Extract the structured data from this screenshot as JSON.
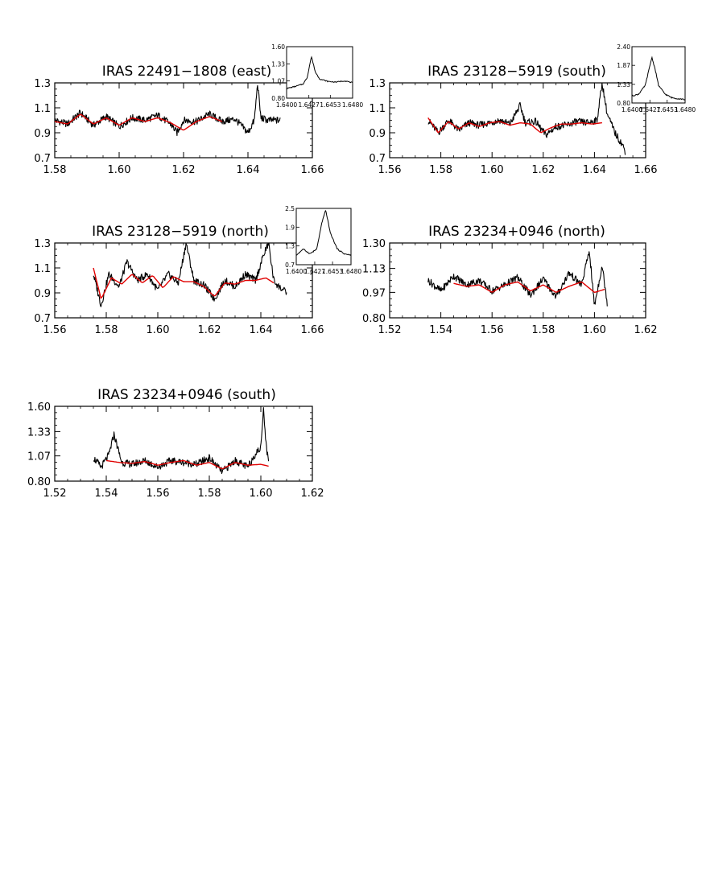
{
  "chart_data": [
    {
      "type": "line",
      "title": "IRAS 22491−1808 (east)",
      "xlim": [
        1.58,
        1.66
      ],
      "ylim": [
        0.7,
        1.3
      ],
      "xticks": [
        "1.58",
        "1.60",
        "1.62",
        "1.64",
        "1.66"
      ],
      "yticks": [
        "0.7",
        "0.9",
        "1.1",
        "1.3"
      ],
      "yticks_values": [
        0.7,
        0.9,
        1.1,
        1.3
      ],
      "data_x_range": [
        1.58,
        1.65
      ],
      "series": [
        {
          "color": "#000000",
          "x": [
            1.58,
            1.584,
            1.588,
            1.592,
            1.596,
            1.6,
            1.604,
            1.608,
            1.612,
            1.616,
            1.618,
            1.62,
            1.624,
            1.628,
            1.632,
            1.636,
            1.64,
            1.642,
            1.643,
            1.644,
            1.646,
            1.65
          ],
          "y": [
            1.0,
            0.97,
            1.06,
            0.96,
            1.03,
            0.95,
            1.02,
            1.0,
            1.04,
            0.97,
            0.9,
            1.0,
            0.99,
            1.05,
            0.99,
            1.01,
            0.9,
            1.0,
            1.3,
            1.02,
            1.0,
            1.0
          ]
        },
        {
          "color": "#e00000",
          "x": [
            1.58,
            1.584,
            1.588,
            1.592,
            1.596,
            1.6,
            1.604,
            1.608,
            1.612,
            1.616,
            1.62,
            1.624,
            1.628,
            1.632
          ],
          "y": [
            0.99,
            0.97,
            1.05,
            0.97,
            1.02,
            0.96,
            1.02,
            0.99,
            1.02,
            0.98,
            0.92,
            0.99,
            1.03,
            0.99
          ]
        }
      ],
      "inset": {
        "xlim": [
          1.64,
          1.648
        ],
        "ylim": [
          0.8,
          1.6
        ],
        "xticks": [
          "1.6400",
          "1.6427",
          "1.6453",
          "1.6480"
        ],
        "xticks_values": [
          1.64,
          1.6427,
          1.6453,
          1.648
        ],
        "yticks": [
          "0.80",
          "1.07",
          "1.33",
          "1.60"
        ],
        "yticks_values": [
          0.8,
          1.07,
          1.33,
          1.6
        ],
        "x": [
          1.64,
          1.641,
          1.642,
          1.6425,
          1.643,
          1.6435,
          1.644,
          1.645,
          1.646,
          1.647,
          1.648
        ],
        "y": [
          0.95,
          0.98,
          1.02,
          1.12,
          1.45,
          1.2,
          1.1,
          1.06,
          1.05,
          1.07,
          1.04
        ]
      }
    },
    {
      "type": "line",
      "title": "IRAS 23128−5919 (south)",
      "xlim": [
        1.56,
        1.66
      ],
      "ylim": [
        0.7,
        1.3
      ],
      "xticks": [
        "1.56",
        "1.58",
        "1.60",
        "1.62",
        "1.64",
        "1.66"
      ],
      "yticks": [
        "0.7",
        "0.9",
        "1.1",
        "1.3"
      ],
      "yticks_values": [
        0.7,
        0.9,
        1.1,
        1.3
      ],
      "data_x_range": [
        1.575,
        1.652
      ],
      "series": [
        {
          "color": "#000000",
          "x": [
            1.575,
            1.579,
            1.583,
            1.587,
            1.591,
            1.595,
            1.599,
            1.603,
            1.607,
            1.611,
            1.613,
            1.617,
            1.621,
            1.625,
            1.629,
            1.633,
            1.637,
            1.641,
            1.643,
            1.645,
            1.648,
            1.651,
            1.652
          ],
          "y": [
            1.0,
            0.9,
            1.0,
            0.92,
            0.98,
            0.96,
            0.98,
            1.0,
            0.97,
            1.12,
            0.98,
            0.99,
            0.88,
            0.95,
            0.96,
            0.99,
            0.98,
            1.0,
            1.3,
            1.05,
            0.9,
            0.8,
            0.75
          ]
        },
        {
          "color": "#e00000",
          "x": [
            1.575,
            1.579,
            1.583,
            1.587,
            1.591,
            1.595,
            1.599,
            1.603,
            1.607,
            1.611,
            1.615,
            1.619,
            1.623,
            1.627,
            1.631,
            1.635,
            1.639,
            1.643
          ],
          "y": [
            1.02,
            0.9,
            0.99,
            0.93,
            0.98,
            0.95,
            0.98,
            0.99,
            0.96,
            0.98,
            0.97,
            0.9,
            0.94,
            0.97,
            0.97,
            0.98,
            0.97,
            0.98
          ]
        }
      ],
      "inset": {
        "xlim": [
          1.64,
          1.648
        ],
        "ylim": [
          0.8,
          2.4
        ],
        "xticks": [
          "1.6400",
          "1.6427",
          "1.6453",
          "1.6480"
        ],
        "xticks_values": [
          1.64,
          1.6427,
          1.6453,
          1.648
        ],
        "yticks": [
          "0.80",
          "1.33",
          "1.87",
          "2.40"
        ],
        "yticks_values": [
          0.8,
          1.33,
          1.87,
          2.4
        ],
        "x": [
          1.64,
          1.641,
          1.642,
          1.6425,
          1.643,
          1.6435,
          1.644,
          1.645,
          1.646,
          1.647,
          1.648
        ],
        "y": [
          1.0,
          1.05,
          1.3,
          1.7,
          2.1,
          1.75,
          1.3,
          1.05,
          0.95,
          0.92,
          0.9
        ]
      }
    },
    {
      "type": "line",
      "title": "IRAS 23128−5919 (north)",
      "xlim": [
        1.56,
        1.66
      ],
      "ylim": [
        0.7,
        1.3
      ],
      "xticks": [
        "1.56",
        "1.58",
        "1.60",
        "1.62",
        "1.64",
        "1.66"
      ],
      "yticks": [
        "0.7",
        "0.9",
        "1.1",
        "1.3"
      ],
      "yticks_values": [
        0.7,
        0.9,
        1.1,
        1.3
      ],
      "data_x_range": [
        1.575,
        1.65
      ],
      "series": [
        {
          "color": "#000000",
          "x": [
            1.575,
            1.578,
            1.581,
            1.585,
            1.588,
            1.592,
            1.596,
            1.6,
            1.604,
            1.608,
            1.611,
            1.614,
            1.618,
            1.622,
            1.626,
            1.63,
            1.634,
            1.638,
            1.641,
            1.643,
            1.645,
            1.647,
            1.65
          ],
          "y": [
            1.05,
            0.8,
            1.05,
            0.95,
            1.15,
            1.0,
            1.05,
            0.92,
            1.05,
            0.98,
            1.3,
            1.0,
            0.96,
            0.85,
            1.0,
            0.95,
            1.05,
            1.0,
            1.2,
            1.3,
            1.0,
            0.95,
            0.9
          ]
        },
        {
          "color": "#e00000",
          "x": [
            1.575,
            1.578,
            1.582,
            1.586,
            1.59,
            1.594,
            1.598,
            1.602,
            1.606,
            1.61,
            1.614,
            1.618,
            1.622,
            1.626,
            1.63,
            1.634,
            1.638,
            1.642,
            1.645
          ],
          "y": [
            1.1,
            0.85,
            1.02,
            0.97,
            1.05,
            0.98,
            1.04,
            0.94,
            1.03,
            0.99,
            0.99,
            0.95,
            0.87,
            0.98,
            0.97,
            1.0,
            1.0,
            1.02,
            0.98
          ]
        }
      ],
      "inset": {
        "xlim": [
          1.64,
          1.648
        ],
        "ylim": [
          0.7,
          2.5
        ],
        "xticks": [
          "1.6400",
          "1.6427",
          "1.6453",
          "1.6480"
        ],
        "xticks_values": [
          1.64,
          1.6427,
          1.6453,
          1.648
        ],
        "yticks": [
          "0.7",
          "1.3",
          "1.9",
          "2.5"
        ],
        "yticks_values": [
          0.7,
          1.3,
          1.9,
          2.5
        ],
        "x": [
          1.64,
          1.641,
          1.642,
          1.643,
          1.6437,
          1.6443,
          1.645,
          1.646,
          1.647,
          1.648
        ],
        "y": [
          1.0,
          1.2,
          1.05,
          1.2,
          2.0,
          2.45,
          1.7,
          1.2,
          1.05,
          1.0
        ]
      }
    },
    {
      "type": "line",
      "title": "IRAS 23234+0946 (north)",
      "xlim": [
        1.52,
        1.62
      ],
      "ylim": [
        0.8,
        1.3
      ],
      "xticks": [
        "1.52",
        "1.54",
        "1.56",
        "1.58",
        "1.60",
        "1.62"
      ],
      "yticks": [
        "0.80",
        "0.97",
        "1.13",
        "1.30"
      ],
      "yticks_values": [
        0.8,
        0.97,
        1.13,
        1.3
      ],
      "data_x_range": [
        1.535,
        1.605
      ],
      "series": [
        {
          "color": "#000000",
          "x": [
            1.535,
            1.54,
            1.545,
            1.55,
            1.555,
            1.56,
            1.565,
            1.57,
            1.575,
            1.58,
            1.585,
            1.59,
            1.595,
            1.598,
            1.6,
            1.603,
            1.605
          ],
          "y": [
            1.05,
            0.98,
            1.08,
            1.02,
            1.05,
            0.98,
            1.02,
            1.07,
            0.95,
            1.06,
            0.94,
            1.1,
            1.02,
            1.25,
            0.88,
            1.15,
            0.9
          ]
        },
        {
          "color": "#e00000",
          "x": [
            1.545,
            1.55,
            1.555,
            1.56,
            1.565,
            1.57,
            1.575,
            1.58,
            1.585,
            1.59,
            1.595,
            1.6,
            1.604
          ],
          "y": [
            1.03,
            1.01,
            1.02,
            0.97,
            1.02,
            1.04,
            0.98,
            1.02,
            0.97,
            1.01,
            1.04,
            0.97,
            0.99
          ]
        }
      ]
    },
    {
      "type": "line",
      "title": "IRAS 23234+0946 (south)",
      "xlim": [
        1.52,
        1.62
      ],
      "ylim": [
        0.8,
        1.6
      ],
      "xticks": [
        "1.52",
        "1.54",
        "1.56",
        "1.58",
        "1.60",
        "1.62"
      ],
      "yticks": [
        "0.80",
        "1.07",
        "1.33",
        "1.60"
      ],
      "yticks_values": [
        0.8,
        1.07,
        1.33,
        1.6
      ],
      "data_x_range": [
        1.535,
        1.603
      ],
      "series": [
        {
          "color": "#000000",
          "x": [
            1.535,
            1.538,
            1.541,
            1.543,
            1.546,
            1.55,
            1.555,
            1.56,
            1.565,
            1.57,
            1.575,
            1.58,
            1.585,
            1.59,
            1.595,
            1.598,
            1.6,
            1.601,
            1.602,
            1.603
          ],
          "y": [
            1.05,
            0.95,
            1.08,
            1.3,
            1.0,
            0.98,
            1.02,
            0.95,
            1.02,
            1.0,
            0.98,
            1.05,
            0.9,
            1.02,
            0.95,
            1.1,
            1.15,
            1.6,
            1.2,
            1.0
          ]
        },
        {
          "color": "#e00000",
          "x": [
            1.54,
            1.545,
            1.55,
            1.555,
            1.56,
            1.565,
            1.57,
            1.575,
            1.58,
            1.585,
            1.59,
            1.595,
            1.6,
            1.603
          ],
          "y": [
            1.02,
            1.0,
            0.99,
            1.01,
            0.97,
            1.0,
            1.02,
            0.97,
            1.0,
            0.93,
            1.0,
            0.97,
            0.98,
            0.96
          ]
        }
      ]
    }
  ]
}
